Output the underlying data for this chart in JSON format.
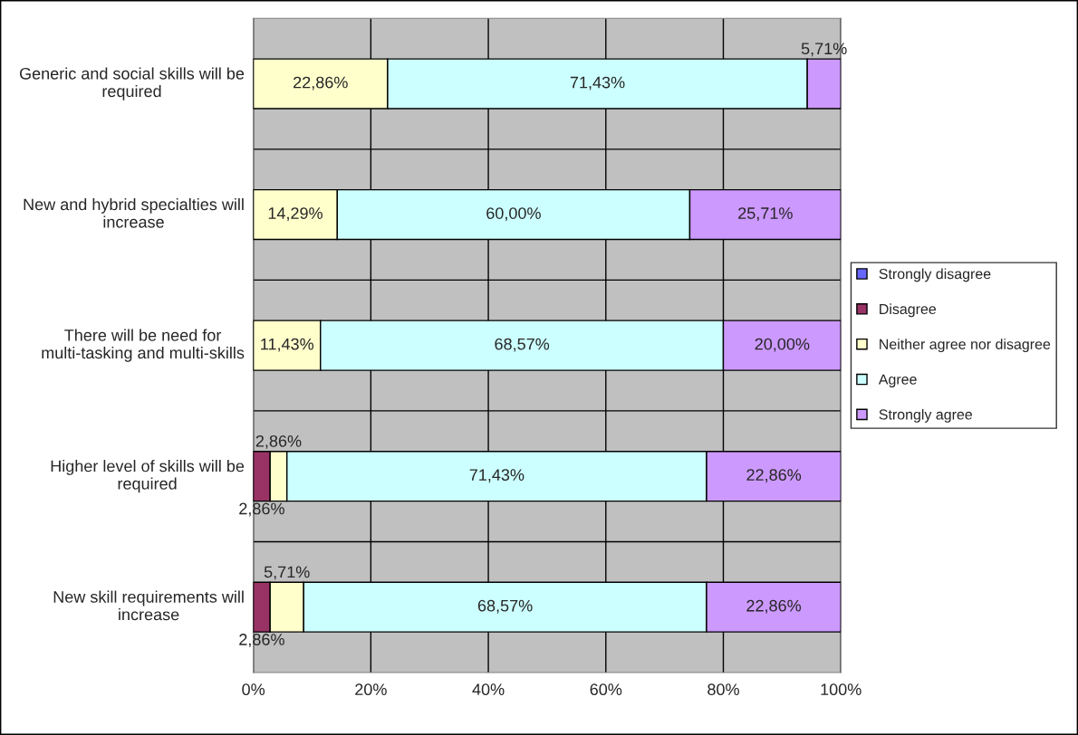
{
  "chart_data": {
    "type": "bar",
    "orientation": "horizontal",
    "stacked": true,
    "categories": [
      "Generic and social skills will be required",
      "New and hybrid specialties will increase",
      "There will be need for multi-tasking and multi-skills",
      "Higher level of skills will be required",
      "New skill requirements will increase"
    ],
    "series": [
      {
        "name": "Strongly disagree",
        "color": "#6666ff",
        "values": [
          0,
          0,
          0,
          0,
          0
        ],
        "value_labels": [
          null,
          null,
          null,
          null,
          null
        ]
      },
      {
        "name": "Disagree",
        "color": "#993366",
        "values": [
          0,
          0,
          0,
          2.86,
          2.86
        ],
        "value_labels": [
          null,
          null,
          null,
          "2,86%",
          "2,86%"
        ]
      },
      {
        "name": "Neither agree nor disagree",
        "color": "#ffffcc",
        "values": [
          22.86,
          14.29,
          11.43,
          2.86,
          5.71
        ],
        "value_labels": [
          "22,86%",
          "14,29%",
          "11,43%",
          "2,86%",
          "5,71%"
        ]
      },
      {
        "name": "Agree",
        "color": "#ccffff",
        "values": [
          71.43,
          60.0,
          68.57,
          71.43,
          68.57
        ],
        "value_labels": [
          "71,43%",
          "60,00%",
          "68,57%",
          "71,43%",
          "68,57%"
        ]
      },
      {
        "name": "Strongly agree",
        "color": "#cc99ff",
        "values": [
          5.71,
          25.71,
          20.0,
          22.86,
          22.86
        ],
        "value_labels": [
          "5,71%",
          "25,71%",
          "20,00%",
          "22,86%",
          "22,86%"
        ]
      }
    ],
    "xlim": [
      0,
      100
    ],
    "xticks": [
      {
        "value": 0,
        "label": "0%"
      },
      {
        "value": 20,
        "label": "20%"
      },
      {
        "value": 40,
        "label": "40%"
      },
      {
        "value": 60,
        "label": "60%"
      },
      {
        "value": 80,
        "label": "80%"
      },
      {
        "value": 100,
        "label": "100%"
      }
    ],
    "grid": true,
    "legend": "right"
  }
}
